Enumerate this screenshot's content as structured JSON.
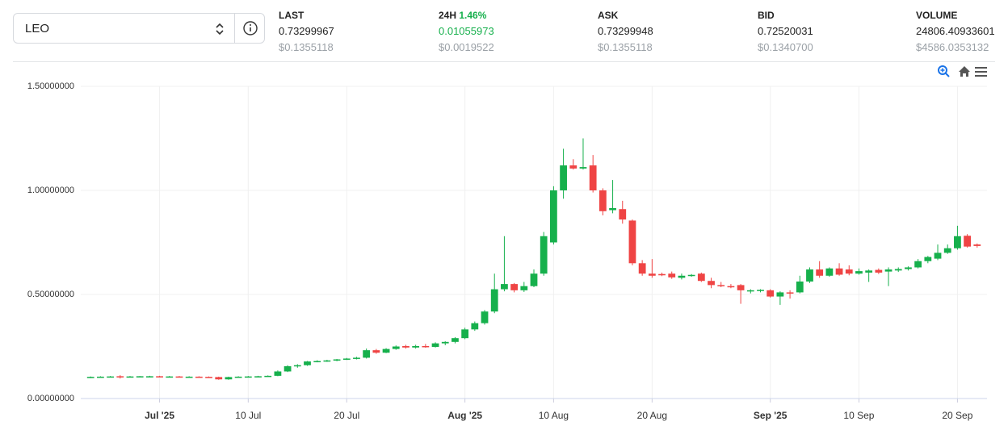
{
  "header": {
    "symbol": "LEO",
    "stats": [
      {
        "label": "LAST",
        "value": "0.73299967",
        "usd": "$0.1355118"
      },
      {
        "label": "24H",
        "change": "1.46%",
        "value": "0.01055973",
        "usd": "$0.0019522"
      },
      {
        "label": "ASK",
        "value": "0.73299948",
        "usd": "$0.1355118"
      },
      {
        "label": "BID",
        "value": "0.72520031",
        "usd": "$0.1340700"
      },
      {
        "label": "VOLUME",
        "value": "24806.40933601",
        "usd": "$4586.0353132"
      }
    ]
  },
  "chart_data": {
    "type": "candlestick",
    "up_color": "#16b04c",
    "down_color": "#ef4444",
    "grid": true,
    "x": [
      "2025-06-24",
      "2025-06-25",
      "2025-06-26",
      "2025-06-27",
      "2025-06-28",
      "2025-06-29",
      "2025-06-30",
      "2025-07-01",
      "2025-07-02",
      "2025-07-03",
      "2025-07-04",
      "2025-07-05",
      "2025-07-06",
      "2025-07-07",
      "2025-07-08",
      "2025-07-09",
      "2025-07-10",
      "2025-07-11",
      "2025-07-12",
      "2025-07-13",
      "2025-07-14",
      "2025-07-15",
      "2025-07-16",
      "2025-07-17",
      "2025-07-18",
      "2025-07-19",
      "2025-07-20",
      "2025-07-21",
      "2025-07-22",
      "2025-07-23",
      "2025-07-24",
      "2025-07-25",
      "2025-07-26",
      "2025-07-27",
      "2025-07-28",
      "2025-07-29",
      "2025-07-30",
      "2025-07-31",
      "2025-08-01",
      "2025-08-02",
      "2025-08-03",
      "2025-08-04",
      "2025-08-05",
      "2025-08-06",
      "2025-08-07",
      "2025-08-08",
      "2025-08-09",
      "2025-08-10",
      "2025-08-11",
      "2025-08-12",
      "2025-08-13",
      "2025-08-14",
      "2025-08-15",
      "2025-08-16",
      "2025-08-17",
      "2025-08-18",
      "2025-08-19",
      "2025-08-20",
      "2025-08-21",
      "2025-08-22",
      "2025-08-23",
      "2025-08-24",
      "2025-08-25",
      "2025-08-26",
      "2025-08-27",
      "2025-08-28",
      "2025-08-29",
      "2025-08-30",
      "2025-08-31",
      "2025-09-01",
      "2025-09-02",
      "2025-09-03",
      "2025-09-04",
      "2025-09-05",
      "2025-09-06",
      "2025-09-07",
      "2025-09-08",
      "2025-09-09",
      "2025-09-10",
      "2025-09-11",
      "2025-09-12",
      "2025-09-13",
      "2025-09-14",
      "2025-09-15",
      "2025-09-16",
      "2025-09-17",
      "2025-09-18",
      "2025-09-19",
      "2025-09-20",
      "2025-09-21",
      "2025-09-22"
    ],
    "open": [
      0.1,
      0.104,
      0.105,
      0.107,
      0.105,
      0.106,
      0.107,
      0.107,
      0.106,
      0.106,
      0.105,
      0.105,
      0.104,
      0.103,
      0.092,
      0.103,
      0.105,
      0.106,
      0.107,
      0.109,
      0.13,
      0.155,
      0.16,
      0.178,
      0.18,
      0.183,
      0.188,
      0.192,
      0.196,
      0.232,
      0.22,
      0.238,
      0.252,
      0.245,
      0.252,
      0.248,
      0.265,
      0.272,
      0.29,
      0.332,
      0.362,
      0.418,
      0.525,
      0.55,
      0.52,
      0.54,
      0.6,
      0.75,
      1.0,
      1.12,
      1.105,
      1.12,
      1.0,
      0.905,
      0.91,
      0.855,
      0.65,
      0.6,
      0.598,
      0.6,
      0.58,
      0.59,
      0.6,
      0.565,
      0.545,
      0.54,
      0.545,
      0.515,
      0.518,
      0.52,
      0.49,
      0.51,
      0.51,
      0.562,
      0.62,
      0.59,
      0.625,
      0.62,
      0.6,
      0.605,
      0.618,
      0.61,
      0.615,
      0.622,
      0.63,
      0.66,
      0.672,
      0.7,
      0.722,
      0.782,
      0.74
    ],
    "high": [
      0.106,
      0.107,
      0.108,
      0.112,
      0.108,
      0.108,
      0.109,
      0.109,
      0.108,
      0.108,
      0.107,
      0.107,
      0.106,
      0.105,
      0.105,
      0.107,
      0.108,
      0.109,
      0.111,
      0.135,
      0.16,
      0.165,
      0.18,
      0.184,
      0.186,
      0.19,
      0.195,
      0.2,
      0.24,
      0.238,
      0.242,
      0.255,
      0.258,
      0.258,
      0.262,
      0.27,
      0.275,
      0.295,
      0.34,
      0.37,
      0.425,
      0.6,
      0.78,
      0.555,
      0.56,
      0.62,
      0.8,
      1.02,
      1.2,
      1.15,
      1.25,
      1.17,
      1.01,
      1.05,
      0.95,
      0.86,
      0.665,
      0.67,
      0.605,
      0.61,
      0.6,
      0.598,
      0.605,
      0.58,
      0.56,
      0.55,
      0.55,
      0.525,
      0.525,
      0.525,
      0.515,
      0.52,
      0.59,
      0.63,
      0.66,
      0.63,
      0.65,
      0.64,
      0.625,
      0.62,
      0.625,
      0.63,
      0.63,
      0.635,
      0.67,
      0.685,
      0.74,
      0.74,
      0.83,
      0.79,
      0.745
    ],
    "low": [
      0.098,
      0.102,
      0.103,
      0.096,
      0.103,
      0.104,
      0.105,
      0.105,
      0.104,
      0.104,
      0.103,
      0.102,
      0.101,
      0.09,
      0.09,
      0.101,
      0.103,
      0.104,
      0.105,
      0.107,
      0.127,
      0.148,
      0.157,
      0.174,
      0.176,
      0.179,
      0.185,
      0.188,
      0.192,
      0.215,
      0.218,
      0.234,
      0.24,
      0.24,
      0.244,
      0.245,
      0.256,
      0.265,
      0.285,
      0.325,
      0.355,
      0.41,
      0.515,
      0.51,
      0.512,
      0.535,
      0.59,
      0.74,
      0.96,
      1.1,
      1.1,
      0.99,
      0.88,
      0.89,
      0.84,
      0.64,
      0.59,
      0.58,
      0.588,
      0.575,
      0.572,
      0.585,
      0.56,
      0.53,
      0.535,
      0.53,
      0.455,
      0.505,
      0.51,
      0.485,
      0.45,
      0.48,
      0.505,
      0.555,
      0.58,
      0.585,
      0.59,
      0.592,
      0.595,
      0.56,
      0.598,
      0.54,
      0.608,
      0.615,
      0.625,
      0.65,
      0.665,
      0.695,
      0.715,
      0.725,
      0.725
    ],
    "close": [
      0.104,
      0.105,
      0.106,
      0.105,
      0.106,
      0.107,
      0.107,
      0.106,
      0.106,
      0.105,
      0.105,
      0.104,
      0.103,
      0.092,
      0.103,
      0.105,
      0.106,
      0.107,
      0.109,
      0.13,
      0.155,
      0.16,
      0.178,
      0.18,
      0.183,
      0.188,
      0.192,
      0.196,
      0.232,
      0.22,
      0.238,
      0.25,
      0.245,
      0.252,
      0.248,
      0.265,
      0.272,
      0.29,
      0.332,
      0.362,
      0.418,
      0.525,
      0.55,
      0.52,
      0.54,
      0.6,
      0.78,
      1.0,
      1.12,
      1.105,
      1.112,
      1.0,
      0.9,
      0.915,
      0.86,
      0.65,
      0.6,
      0.59,
      0.592,
      0.582,
      0.59,
      0.594,
      0.565,
      0.545,
      0.54,
      0.535,
      0.52,
      0.52,
      0.522,
      0.49,
      0.51,
      0.505,
      0.562,
      0.62,
      0.59,
      0.625,
      0.595,
      0.6,
      0.612,
      0.615,
      0.605,
      0.62,
      0.622,
      0.63,
      0.66,
      0.68,
      0.7,
      0.722,
      0.78,
      0.73,
      0.733
    ],
    "xlim": [
      "2025-06-23",
      "2025-09-23"
    ],
    "ylim": [
      0,
      1.5
    ],
    "yticks": [
      {
        "value": 0,
        "label": "0.00000000"
      },
      {
        "value": 0.5,
        "label": "0.50000000"
      },
      {
        "value": 1,
        "label": "1.00000000"
      },
      {
        "value": 1.5,
        "label": "1.50000000"
      }
    ],
    "xticks": [
      {
        "value": "2025-07-01",
        "label": "Jul '25"
      },
      {
        "value": "2025-07-10",
        "label": "10 Jul"
      },
      {
        "value": "2025-07-20",
        "label": "20 Jul"
      },
      {
        "value": "2025-08-01",
        "label": "Aug '25"
      },
      {
        "value": "2025-08-10",
        "label": "10 Aug"
      },
      {
        "value": "2025-08-20",
        "label": "20 Aug"
      },
      {
        "value": "2025-09-01",
        "label": "Sep '25"
      },
      {
        "value": "2025-09-10",
        "label": "10 Sep"
      },
      {
        "value": "2025-09-20",
        "label": "20 Sep"
      }
    ]
  }
}
